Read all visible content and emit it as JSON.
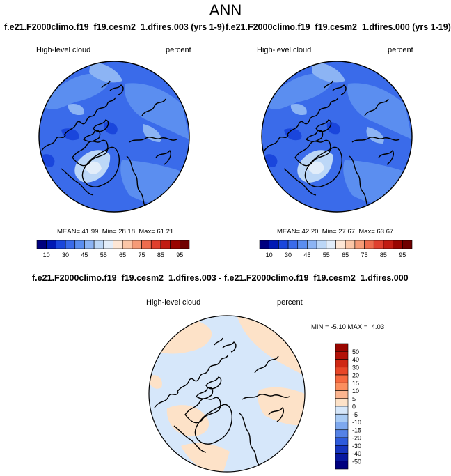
{
  "page": {
    "title": "ANN",
    "top_caption_left": "f.e21.F2000climo.f19_f19.cesm2_1.dfires.003 (yrs 1-9)",
    "top_caption_right": "f.e21.F2000climo.f19_f19.cesm2_1.dfires.000 (yrs 1-19)",
    "diff_caption": "f.e21.F2000climo.f19_f19.cesm2_1.dfires.003 - f.e21.F2000climo.f19_f19.cesm2_1.dfires.000"
  },
  "chart_data": [
    {
      "type": "heatmap",
      "projection": "north-polar-stereographic",
      "variable": "High-level cloud",
      "units": "percent",
      "stats": {
        "mean_label": "MEAN=",
        "mean": "41.99",
        "min_label": "Min=",
        "min": "28.18",
        "max_label": "Max=",
        "max": "61.21"
      },
      "colorbar": {
        "orientation": "horizontal",
        "tick_labels": [
          "10",
          "30",
          "45",
          "55",
          "65",
          "75",
          "85",
          "95"
        ],
        "colors": [
          "#00007f",
          "#0019b4",
          "#1a46dc",
          "#3a6bea",
          "#5b8ef0",
          "#8cb4f4",
          "#bcd7f7",
          "#e2edfa",
          "#fde6d5",
          "#fbc6a7",
          "#f69b77",
          "#ee6c4e",
          "#e0402e",
          "#c21c12",
          "#990500",
          "#700000"
        ]
      }
    },
    {
      "type": "heatmap",
      "projection": "north-polar-stereographic",
      "variable": "High-level cloud",
      "units": "percent",
      "stats": {
        "mean_label": "MEAN=",
        "mean": "42.20",
        "min_label": "Min=",
        "min": "27.67",
        "max_label": "Max=",
        "max": "63.67"
      },
      "colorbar": {
        "orientation": "horizontal",
        "tick_labels": [
          "10",
          "30",
          "45",
          "55",
          "65",
          "75",
          "85",
          "95"
        ],
        "colors": [
          "#00007f",
          "#0019b4",
          "#1a46dc",
          "#3a6bea",
          "#5b8ef0",
          "#8cb4f4",
          "#bcd7f7",
          "#e2edfa",
          "#fde6d5",
          "#fbc6a7",
          "#f69b77",
          "#ee6c4e",
          "#e0402e",
          "#c21c12",
          "#990500",
          "#700000"
        ]
      }
    },
    {
      "type": "heatmap",
      "projection": "north-polar-stereographic",
      "variable": "High-level cloud",
      "units": "percent",
      "stats": {
        "min_label": "MIN =",
        "min": "-5.10",
        "max_label": "MAX =",
        "max": "4.03"
      },
      "colorbar": {
        "orientation": "vertical",
        "tick_labels": [
          "50",
          "40",
          "30",
          "20",
          "15",
          "10",
          "5",
          "0",
          "-5",
          "-10",
          "-15",
          "-20",
          "-30",
          "-40",
          "-50"
        ],
        "colors": [
          "#990500",
          "#b31208",
          "#cf2814",
          "#e84627",
          "#f6693f",
          "#fb8e5e",
          "#fcb590",
          "#fde2c8",
          "#d6e7fa",
          "#a9cbf4",
          "#7ea8ee",
          "#5582e6",
          "#2e5bdc",
          "#1635c0",
          "#0818a0",
          "#00007f"
        ]
      }
    }
  ]
}
